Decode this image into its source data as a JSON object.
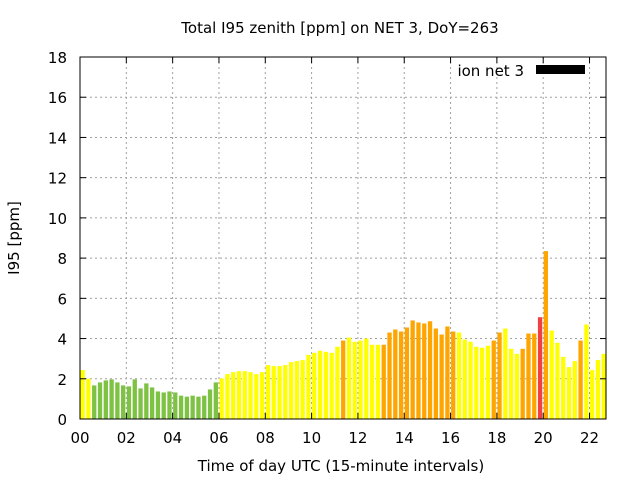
{
  "chart_data": {
    "type": "bar",
    "title": "Total I95 zenith [ppm] on NET 3, DoY=263",
    "xlabel": "Time of day UTC (15-minute intervals)",
    "ylabel": "I95 [ppm]",
    "ylim": [
      0,
      18
    ],
    "yticks": [
      "0",
      "2",
      "4",
      "6",
      "8",
      "10",
      "12",
      "14",
      "16",
      "18"
    ],
    "xticks": [
      "00",
      "02",
      "04",
      "06",
      "08",
      "10",
      "12",
      "14",
      "16",
      "18",
      "20",
      "22"
    ],
    "interval_hours": 0.25,
    "grid": true,
    "legend": {
      "label": "ion net 3",
      "position": "top-right"
    },
    "level_colors": {
      "g": "#7dc242",
      "y": "#ffff00",
      "o": "#ffa500",
      "r": "#f04040",
      "legend": "#000000"
    },
    "values": [
      2.43,
      2.0,
      1.67,
      1.82,
      1.92,
      1.97,
      1.82,
      1.67,
      1.62,
      1.97,
      1.52,
      1.77,
      1.57,
      1.37,
      1.32,
      1.37,
      1.32,
      1.16,
      1.11,
      1.16,
      1.11,
      1.16,
      1.47,
      1.82,
      2.02,
      2.23,
      2.33,
      2.38,
      2.38,
      2.33,
      2.23,
      2.33,
      2.68,
      2.63,
      2.63,
      2.68,
      2.83,
      2.88,
      2.93,
      3.19,
      3.29,
      3.39,
      3.34,
      3.29,
      3.59,
      3.9,
      4.05,
      3.84,
      3.9,
      4.0,
      3.69,
      3.69,
      3.69,
      4.3,
      4.45,
      4.35,
      4.55,
      4.9,
      4.8,
      4.75,
      4.86,
      4.5,
      4.2,
      4.6,
      4.35,
      4.3,
      3.95,
      3.84,
      3.59,
      3.54,
      3.64,
      3.9,
      4.3,
      4.5,
      3.49,
      3.24,
      3.49,
      4.25,
      4.25,
      5.06,
      8.35,
      4.4,
      3.79,
      3.09,
      2.58,
      2.88,
      3.9,
      4.7,
      2.43,
      2.93,
      3.24,
      2.02
    ],
    "levels": "yyggggggggggggggggggggggyyyyyyyyyyyyyyyyyyyyyoyyyyyyoooooooooooooyyyyyyooyyyoooroyyyyyoyyyy"
  }
}
